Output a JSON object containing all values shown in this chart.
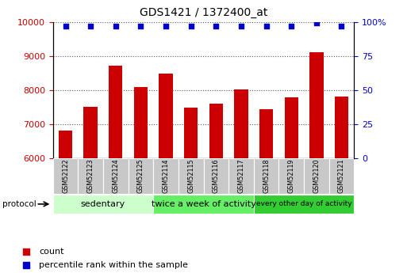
{
  "title": "GDS1421 / 1372400_at",
  "samples": [
    "GSM52122",
    "GSM52123",
    "GSM52124",
    "GSM52125",
    "GSM52114",
    "GSM52115",
    "GSM52116",
    "GSM52117",
    "GSM52118",
    "GSM52119",
    "GSM52120",
    "GSM52121"
  ],
  "counts": [
    6820,
    7500,
    8720,
    8080,
    8480,
    7480,
    7600,
    8020,
    7440,
    7780,
    9100,
    7820
  ],
  "percentile_ranks": [
    97,
    97,
    97,
    97,
    97,
    97,
    97,
    97,
    97,
    97,
    99,
    97
  ],
  "ylim_left": [
    6000,
    10000
  ],
  "ylim_right": [
    0,
    100
  ],
  "yticks_left": [
    6000,
    7000,
    8000,
    9000,
    10000
  ],
  "yticks_right": [
    0,
    25,
    50,
    75,
    100
  ],
  "bar_color": "#cc0000",
  "dot_color": "#0000cc",
  "groups": [
    {
      "label": "sedentary",
      "start": 0,
      "end": 4,
      "color": "#ccffcc"
    },
    {
      "label": "twice a week of activity",
      "start": 4,
      "end": 8,
      "color": "#66ee66"
    },
    {
      "label": "every other day of activity",
      "start": 8,
      "end": 12,
      "color": "#33cc33"
    }
  ],
  "protocol_label": "protocol",
  "legend_count_label": "count",
  "legend_pct_label": "percentile rank within the sample",
  "background_color": "#ffffff",
  "left_tick_color": "#cc0000",
  "right_tick_color": "#0000cc",
  "sample_box_color": "#c8c8c8",
  "figure_width": 5.13,
  "figure_height": 3.45,
  "dpi": 100
}
